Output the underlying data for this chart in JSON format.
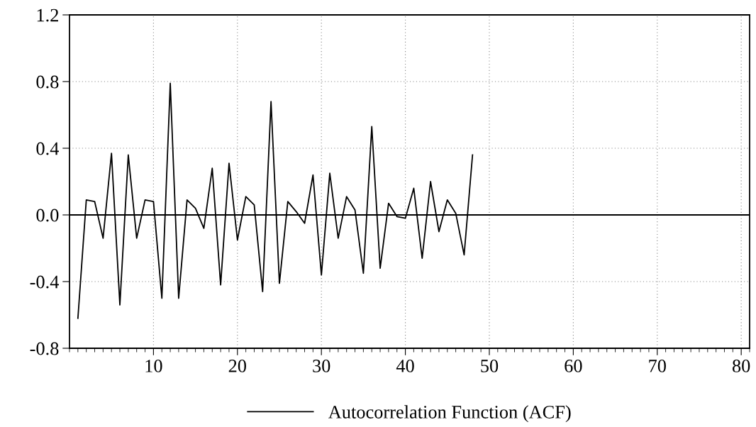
{
  "chart_data": {
    "type": "line",
    "x": [
      1,
      2,
      3,
      4,
      5,
      6,
      7,
      8,
      9,
      10,
      11,
      12,
      13,
      14,
      15,
      16,
      17,
      18,
      19,
      20,
      21,
      22,
      23,
      24,
      25,
      26,
      27,
      28,
      29,
      30,
      31,
      32,
      33,
      34,
      35,
      36,
      37,
      38,
      39,
      40,
      41,
      42,
      43,
      44,
      45,
      46,
      47,
      48
    ],
    "series": [
      {
        "name": "Autocorrelation Function (ACF)",
        "color": "#000000",
        "values": [
          -0.62,
          0.09,
          0.08,
          -0.14,
          0.37,
          -0.54,
          0.36,
          -0.14,
          0.09,
          0.08,
          -0.5,
          0.79,
          -0.5,
          0.09,
          0.04,
          -0.08,
          0.28,
          -0.42,
          0.31,
          -0.15,
          0.11,
          0.06,
          -0.46,
          0.68,
          -0.41,
          0.08,
          0.02,
          -0.05,
          0.24,
          -0.36,
          0.25,
          -0.14,
          0.11,
          0.03,
          -0.35,
          0.53,
          -0.32,
          0.07,
          -0.01,
          -0.02,
          0.16,
          -0.26,
          0.2,
          -0.1,
          0.09,
          0.01,
          -0.24,
          0.36
        ]
      }
    ],
    "xlim": [
      0,
      81
    ],
    "xticks": [
      10,
      20,
      30,
      40,
      50,
      60,
      70,
      80
    ],
    "ylim": [
      -0.8,
      1.2
    ],
    "yticks": [
      {
        "value": -0.8,
        "label": "-0.8"
      },
      {
        "value": -0.4,
        "label": "-0.4"
      },
      {
        "value": 0,
        "label": "0.0"
      },
      {
        "value": 0.4,
        "label": "0.4"
      },
      {
        "value": 0.8,
        "label": "0.8"
      },
      {
        "value": 1.2,
        "label": "1.2"
      }
    ],
    "ref_lines": [
      {
        "axis": "y",
        "value": 0,
        "color": "#000000",
        "line_style": "solid"
      }
    ],
    "grid": true,
    "legend": "bottom",
    "line_style": "solid",
    "marker": "none"
  }
}
